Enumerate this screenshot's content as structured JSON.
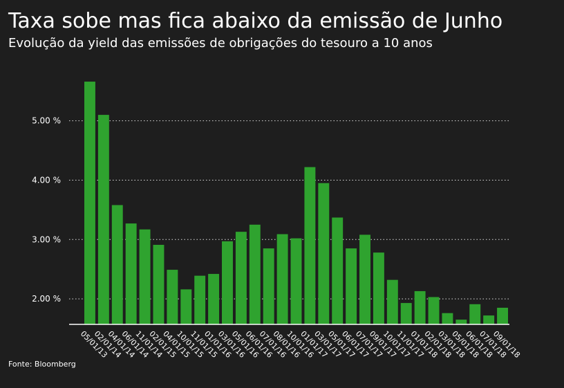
{
  "chart_data": {
    "type": "bar",
    "title": "Taxa sobe mas fica abaixo da emissão de Junho",
    "subtitle": "Evolução da yield das emissões de obrigações do tesouro a 10 anos",
    "source": "Fonte: Bloomberg",
    "categories": [
      "05/01/13",
      "02/01/14",
      "04/01/14",
      "06/01/14",
      "11/01/14",
      "02/01/15",
      "04/01/15",
      "10/01/15",
      "11/01/15",
      "01/01/16",
      "03/01/16",
      "05/01/16",
      "06/01/16",
      "07/01/16",
      "08/01/16",
      "10/01/16",
      "01/01/17",
      "03/01/17",
      "05/01/17",
      "06/01/17",
      "07/01/17",
      "09/01/17",
      "10/01/17",
      "11/01/17",
      "01/01/18",
      "02/01/18",
      "03/01/18",
      "05/01/18",
      "06/01/18",
      "07/01/18",
      "09/01/18"
    ],
    "values": [
      5.66,
      5.1,
      3.58,
      3.27,
      3.17,
      2.91,
      2.49,
      2.16,
      2.39,
      2.42,
      2.97,
      3.13,
      3.25,
      2.85,
      3.09,
      3.02,
      4.22,
      3.95,
      3.37,
      2.85,
      3.08,
      2.78,
      2.32,
      1.93,
      2.13,
      2.03,
      1.76,
      1.65,
      1.91,
      1.72,
      1.85
    ],
    "color": "#2fa32f",
    "ylim": [
      1.57,
      5.87
    ],
    "yticks": [
      {
        "value": 2,
        "label": "2.00 %"
      },
      {
        "value": 3,
        "label": "3.00 %"
      },
      {
        "value": 4,
        "label": "4.00 %"
      },
      {
        "value": 5,
        "label": "5.00 %"
      }
    ],
    "grid": true
  }
}
